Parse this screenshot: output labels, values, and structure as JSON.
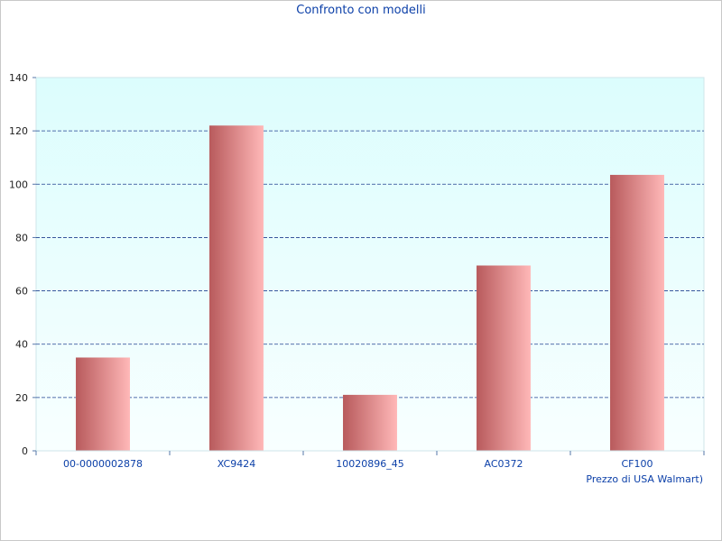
{
  "chart_data": {
    "type": "bar",
    "title": "Confronto con modelli",
    "xlabel": "Prezzo di USA Walmart)",
    "ylabel": "",
    "categories": [
      "00-0000002878",
      "XC9424",
      "10020896_45",
      "AC0372",
      "CF100"
    ],
    "values": [
      35,
      122,
      21,
      69.5,
      103.5
    ],
    "ylim": [
      0,
      140
    ],
    "yticks": [
      0,
      20,
      40,
      60,
      80,
      100,
      120,
      140
    ],
    "grid": true,
    "colors": {
      "plot_background_top": "#dcfdfd",
      "plot_background_bottom": "#f8ffff",
      "bar_dark": "#b85a5c",
      "bar_light": "#ffb8b8",
      "grid": "#1f3f8f",
      "text": "#0b3fa8"
    }
  }
}
